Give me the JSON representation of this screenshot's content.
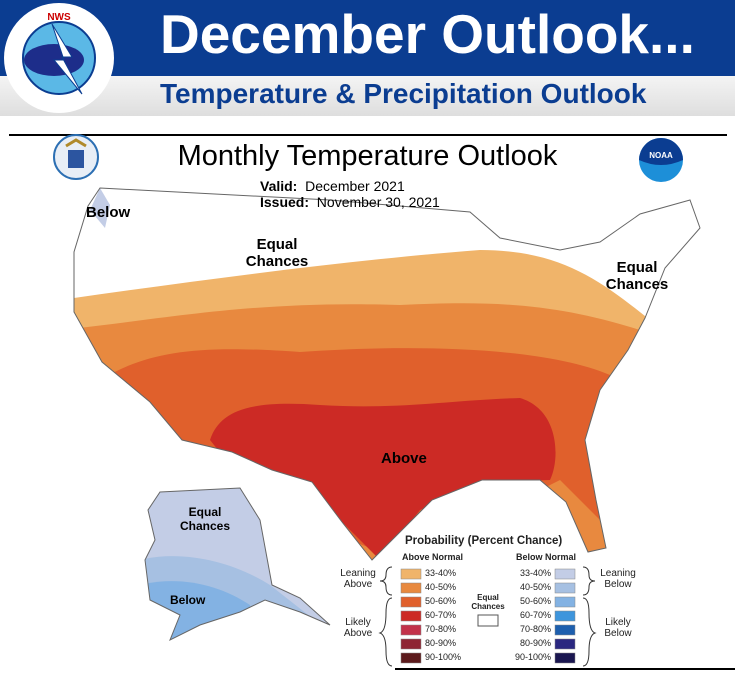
{
  "header": {
    "title": "December Outlook...",
    "subtitle": "Temperature & Precipitation Outlook",
    "logo_text": "NATIONAL WEATHER SERVICE",
    "colors": {
      "banner": "#0b3d91",
      "subtitle": "#0b3d91"
    }
  },
  "map": {
    "title": "Monthly Temperature Outlook",
    "valid_label": "Valid:",
    "valid_value": "December 2021",
    "issued_label": "Issued:",
    "issued_value": "November 30, 2021",
    "seal_icon": "doc-seal-icon",
    "noaa_logo_text": "NOAA",
    "regions": {
      "below_nw": "Below",
      "equal_west": "Equal Chances",
      "equal_ne": "Equal Chances",
      "above": "Above",
      "alaska_equal": "Equal Chances",
      "alaska_below": "Below"
    }
  },
  "legend": {
    "title": "Probability (Percent Chance)",
    "above_header": "Above Normal",
    "below_header": "Below Normal",
    "equal_label": "Equal Chances",
    "leaning_above": "Leaning Above",
    "likely_above": "Likely Above",
    "leaning_below": "Leaning Below",
    "likely_below": "Likely Below",
    "above": [
      {
        "range": "33-40%",
        "color": "#f0b46a"
      },
      {
        "range": "40-50%",
        "color": "#e8893f"
      },
      {
        "range": "50-60%",
        "color": "#e0602c"
      },
      {
        "range": "60-70%",
        "color": "#cc2a25"
      },
      {
        "range": "70-80%",
        "color": "#c2324a"
      },
      {
        "range": "80-90%",
        "color": "#8e2533"
      },
      {
        "range": "90-100%",
        "color": "#5c1a1c"
      }
    ],
    "below": [
      {
        "range": "33-40%",
        "color": "#c3cde6"
      },
      {
        "range": "40-50%",
        "color": "#a6c0e2"
      },
      {
        "range": "50-60%",
        "color": "#83b2e3"
      },
      {
        "range": "60-70%",
        "color": "#3e95dc"
      },
      {
        "range": "70-80%",
        "color": "#1d5fae"
      },
      {
        "range": "80-90%",
        "color": "#2a2780"
      },
      {
        "range": "90-100%",
        "color": "#1a1650"
      }
    ]
  }
}
